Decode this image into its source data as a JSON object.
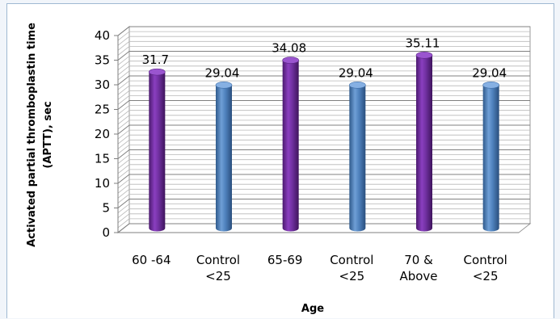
{
  "chart_data": {
    "type": "bar",
    "categories": [
      [
        "60 -64"
      ],
      [
        "Control",
        "<25"
      ],
      [
        "65-69"
      ],
      [
        "Control",
        "<25"
      ],
      [
        "70 &",
        "Above"
      ],
      [
        "Control",
        "<25"
      ]
    ],
    "values": [
      31.7,
      29.04,
      34.08,
      29.04,
      35.11,
      29.04
    ],
    "value_labels": [
      "31.7",
      "29.04",
      "34.08",
      "29.04",
      "35.11",
      "29.04"
    ],
    "bar_colors": [
      "#7030a0",
      "#4f81bd",
      "#7030a0",
      "#4f81bd",
      "#7030a0",
      "#4f81bd"
    ],
    "xlabel": "Age",
    "ylabel": [
      "Activated partial thromboplastin time",
      "(APTT), sec"
    ],
    "ylim": [
      0,
      40
    ],
    "yticks": [
      0,
      5,
      10,
      15,
      20,
      25,
      30,
      35,
      40
    ],
    "grid": true,
    "style": "3d-cylinder"
  }
}
